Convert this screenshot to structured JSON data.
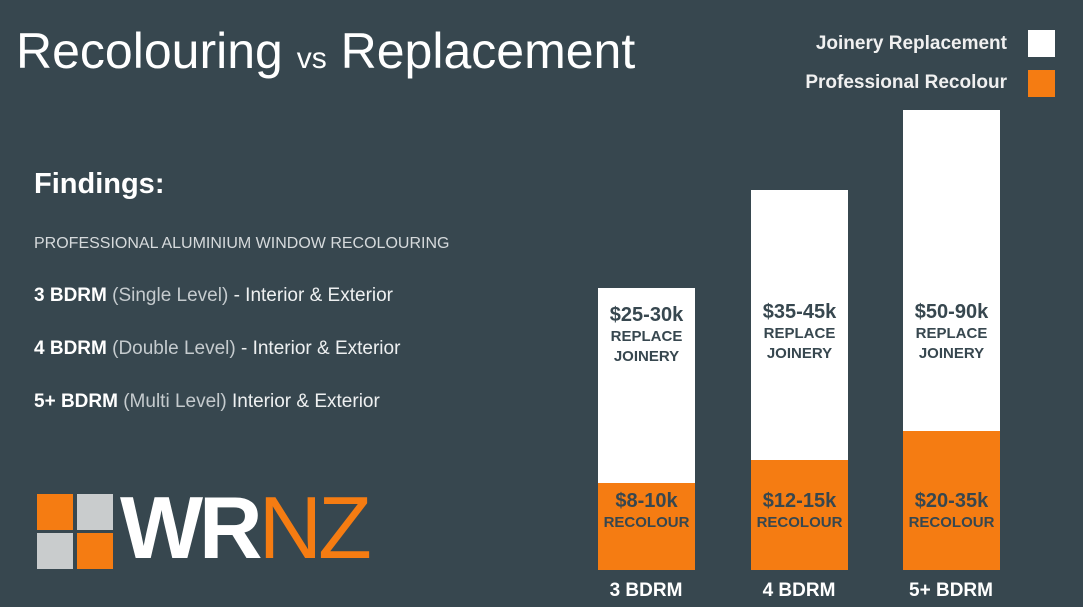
{
  "header": {
    "title": [
      "Recolouring",
      "vs",
      "Replacement"
    ]
  },
  "legend": [
    "Joinery Replacement",
    "Professional Recolour"
  ],
  "findings": {
    "heading": "Findings:",
    "subheading": "PROFESSIONAL ALUMINIUM WINDOW RECOLOURING",
    "rows": [
      [
        "3 BDRM",
        "(Single Level)",
        "- Interior & Exterior"
      ],
      [
        "4 BDRM",
        "(Double Level)",
        "- Interior & Exterior"
      ],
      [
        "5+ BDRM",
        "(Multi Level)",
        "Interior & Exterior"
      ]
    ]
  },
  "logo": [
    "WR",
    "NZ"
  ],
  "bars": [
    {
      "category": "3 BDRM",
      "replace_price": "$25-30k",
      "replace_caption": [
        "REPLACE",
        "JOINERY"
      ],
      "recolour_price": "$8-10k",
      "recolour_caption": "RECOLOUR"
    },
    {
      "category": "4 BDRM",
      "replace_price": "$35-45k",
      "replace_caption": [
        "REPLACE",
        "JOINERY"
      ],
      "recolour_price": "$12-15k",
      "recolour_caption": "RECOLOUR"
    },
    {
      "category": "5+ BDRM",
      "replace_price": "$50-90k",
      "replace_caption": [
        "REPLACE",
        "JOINERY"
      ],
      "recolour_price": "$20-35k",
      "recolour_caption": "RECOLOUR"
    }
  ]
}
